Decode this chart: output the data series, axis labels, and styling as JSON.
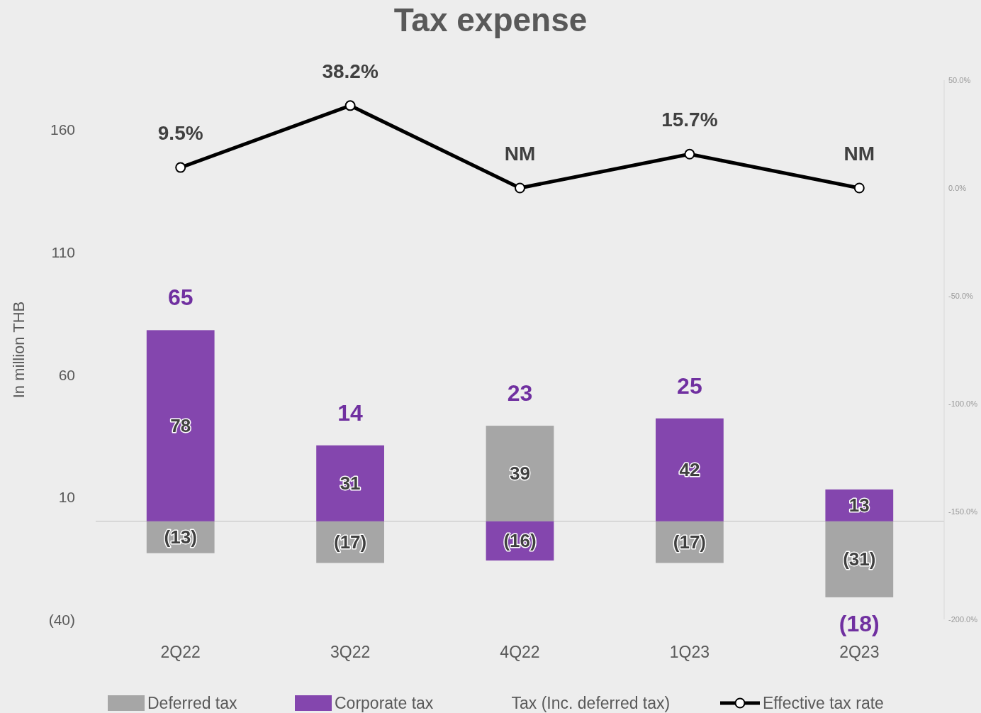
{
  "chart_data": {
    "type": "bar",
    "title": "Tax expense",
    "ylabel": "In million THB",
    "categories": [
      "2Q22",
      "3Q22",
      "4Q22",
      "1Q23",
      "2Q23"
    ],
    "stacked": true,
    "series": [
      {
        "name": "Deferred tax",
        "color": "#a6a6a6",
        "values": [
          -13,
          -17,
          39,
          -17,
          -31
        ],
        "value_labels": [
          "(13)",
          "(17)",
          "39",
          "(17)",
          "(31)"
        ]
      },
      {
        "name": "Corporate tax",
        "color": "#8446ae",
        "values": [
          78,
          31,
          -16,
          42,
          13
        ],
        "value_labels": [
          "78",
          "31",
          "(16)",
          "42",
          "13"
        ]
      },
      {
        "name": "Effective tax rate",
        "type": "line",
        "axis": "y2",
        "marker": "circle",
        "color": "#000000",
        "values": [
          9.5,
          38.2,
          0,
          15.7,
          0
        ],
        "value_labels": [
          "9.5%",
          "38.2%",
          "NM",
          "15.7%",
          "NM"
        ]
      }
    ],
    "totals": [
      "65",
      "14",
      "23",
      "25",
      "(18)"
    ],
    "annotations": [
      "Tax (Inc. deferred tax)"
    ],
    "ylim": [
      -40,
      180
    ],
    "yticks": [
      {
        "value": -40,
        "label": "(40)"
      },
      10,
      60,
      110,
      160
    ],
    "y2lim": [
      -200,
      50
    ],
    "y2ticks": [
      {
        "value": -200,
        "label": "-200.0%"
      },
      {
        "value": -150,
        "label": "-150.0%"
      },
      {
        "value": -100,
        "label": "-100.0%"
      },
      {
        "value": -50,
        "label": "-50.0%"
      },
      {
        "value": 0,
        "label": "0.0%"
      },
      {
        "value": 50,
        "label": "50.0%"
      }
    ],
    "grid": false,
    "legend": "bottom"
  }
}
